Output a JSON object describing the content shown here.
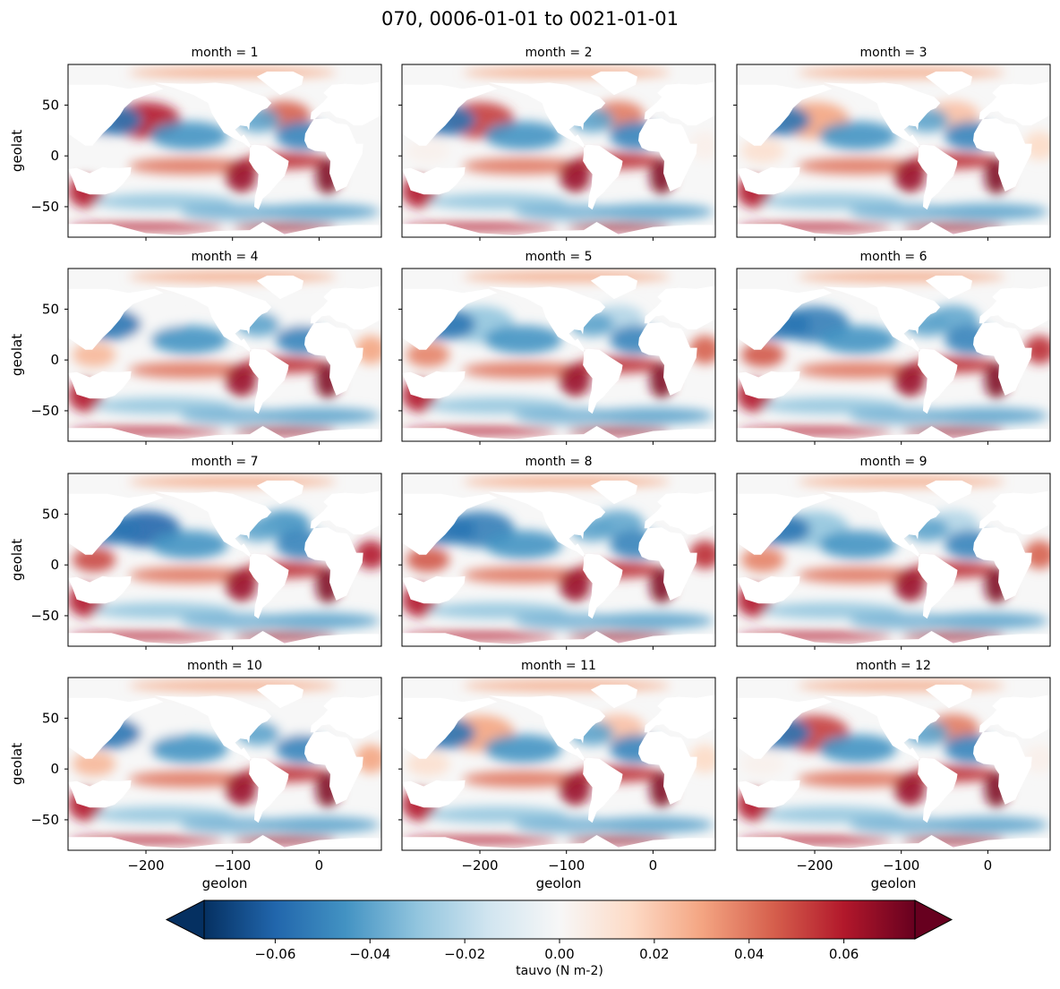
{
  "chart_data": {
    "type": "heatmap",
    "title": "070, 0006-01-01 to 0021-01-01",
    "variable": "tauvo",
    "units": "N m-2",
    "colorbar_label": "tauvo (N m-2)",
    "colormap": "RdBu_r",
    "vmin": -0.075,
    "vmax": 0.075,
    "extend": "both",
    "colorbar_ticks": [
      -0.06,
      -0.04,
      -0.02,
      0.0,
      0.02,
      0.04,
      0.06
    ],
    "colorbar_tick_labels": [
      "−0.06",
      "−0.04",
      "−0.02",
      "0.00",
      "0.02",
      "0.04",
      "0.06"
    ],
    "xlabel": "geolon",
    "ylabel": "geolat",
    "xlim": [
      -290,
      72
    ],
    "ylim": [
      -80,
      90
    ],
    "xticks": [
      -200,
      -100,
      0
    ],
    "xtick_labels": [
      "−200",
      "−100",
      "0"
    ],
    "yticks": [
      -50,
      0,
      50
    ],
    "ytick_labels": [
      "−50",
      "0",
      "50"
    ],
    "facet": "month",
    "panels": [
      {
        "title": "month = 1"
      },
      {
        "title": "month = 2"
      },
      {
        "title": "month = 3"
      },
      {
        "title": "month = 4"
      },
      {
        "title": "month = 5"
      },
      {
        "title": "month = 6"
      },
      {
        "title": "month = 7"
      },
      {
        "title": "month = 8"
      },
      {
        "title": "month = 9"
      },
      {
        "title": "month = 10"
      },
      {
        "title": "month = 11"
      },
      {
        "title": "month = 12"
      }
    ]
  }
}
